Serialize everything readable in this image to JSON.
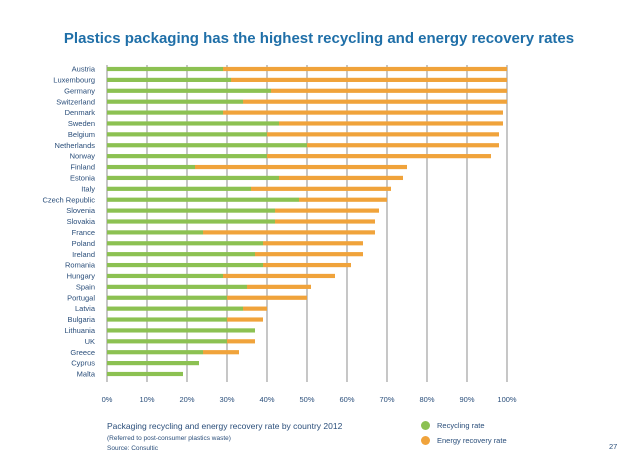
{
  "chart_data": {
    "type": "bar",
    "orientation": "horizontal",
    "stacked": true,
    "title": "Plastics packaging has the highest recycling and energy recovery rates",
    "categories": [
      "Austria",
      "Luxembourg",
      "Germany",
      "Switzerland",
      "Denmark",
      "Sweden",
      "Belgium",
      "Netherlands",
      "Norway",
      "Finland",
      "Estonia",
      "Italy",
      "Czech Republic",
      "Slovenia",
      "Slovakia",
      "France",
      "Poland",
      "Ireland",
      "Romania",
      "Hungary",
      "Spain",
      "Portugal",
      "Latvia",
      "Bulgaria",
      "Lithuania",
      "UK",
      "Greece",
      "Cyprus",
      "Malta"
    ],
    "series": [
      {
        "name": "Recycling rate",
        "color": "#8cc152",
        "values": [
          29,
          31,
          41,
          34,
          29,
          43,
          40,
          50,
          40,
          22,
          43,
          36,
          48,
          42,
          42,
          24,
          39,
          37,
          39,
          29,
          35,
          30,
          34,
          30,
          37,
          30,
          24,
          23,
          19
        ]
      },
      {
        "name": "Energy recovery rate",
        "color": "#f0a33b",
        "values": [
          71,
          69,
          59,
          66,
          70,
          56,
          58,
          48,
          56,
          53,
          31,
          35,
          22,
          26,
          25,
          43,
          25,
          27,
          22,
          28,
          16,
          20,
          6,
          9,
          0,
          7,
          9,
          0,
          0
        ]
      }
    ],
    "x_ticks": [
      "0%",
      "10%",
      "20%",
      "30%",
      "40%",
      "50%",
      "60%",
      "70%",
      "80%",
      "90%",
      "100%"
    ],
    "xlim": [
      0,
      100
    ],
    "grid": "vertical",
    "legend_placement": "bottom-right"
  },
  "captions": {
    "main": "Packaging recycling and energy recovery rate by country 2012",
    "sub": "(Referred to post-consumer plastics waste)",
    "source": "Source: Consultic"
  },
  "legend": {
    "recycling": "Recycling rate",
    "energy": "Energy recovery rate"
  },
  "page_number": "27"
}
